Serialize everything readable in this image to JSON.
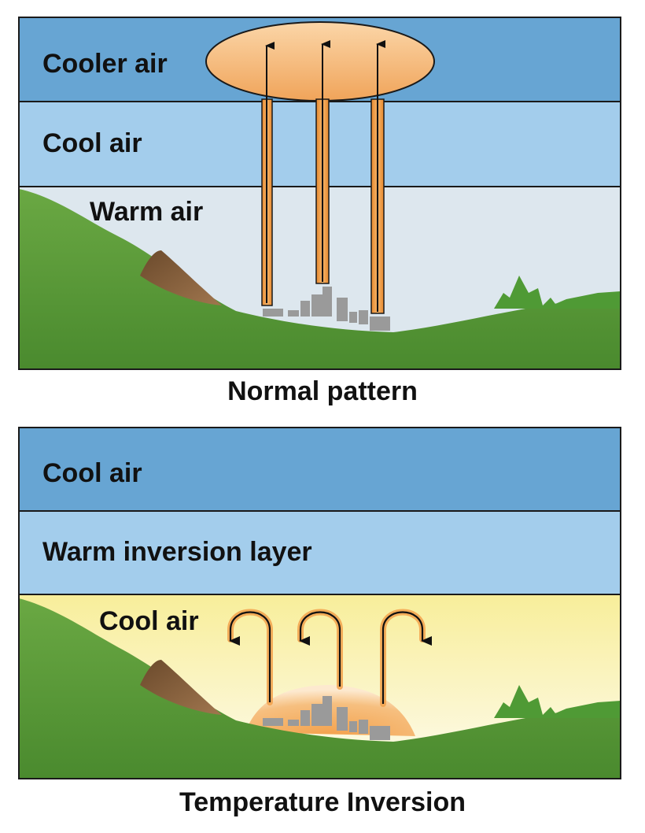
{
  "normal": {
    "layers": {
      "top": "Cooler air",
      "middle": "Cool air",
      "bottom": "Warm air"
    },
    "caption": "Normal pattern"
  },
  "inversion": {
    "layers": {
      "top": "Cool air",
      "middle": "Warm inversion layer",
      "bottom": "Cool air"
    },
    "caption": "Temperature Inversion"
  },
  "colors": {
    "top_layer": "#67a5d3",
    "middle_layer": "#a3cdec",
    "normal_bottom_sky": "#dde7ee",
    "inversion_bottom_sky": "#f9f0a3",
    "ground": "#5d9a3a",
    "smoke": "#f0a04a",
    "city": "#9a9a9a"
  }
}
